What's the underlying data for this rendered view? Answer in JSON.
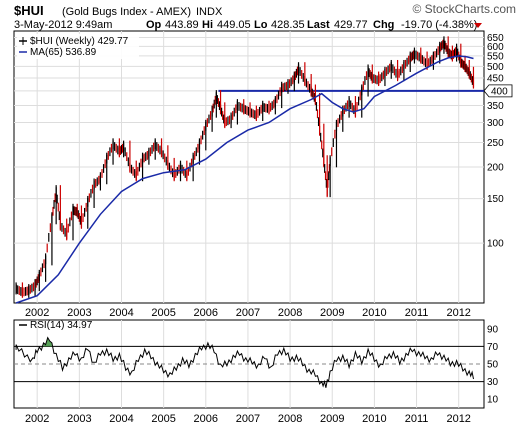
{
  "header": {
    "symbol": "$HUI",
    "name": "(Gold Bugs Index - AMEX)",
    "exchange": "INDX",
    "brand": "© StockCharts.com",
    "date": "3-May-2012 9:49am",
    "op_label": "Op",
    "op_value": "443.89",
    "hi_label": "Hi",
    "hi_value": "449.05",
    "lo_label": "Lo",
    "lo_value": "428.35",
    "last_label": "Last",
    "last_value": "429.77",
    "chg_label": "Chg",
    "chg_value": "-19.70 (-4.38%)",
    "colors": {
      "up": "#000000",
      "down": "#cc0000",
      "ma": "#1a2aa8",
      "hline": "#1a2aa8",
      "rsi_fill": "#2e8b2e"
    }
  },
  "chart_data": [
    {
      "type": "line",
      "legend": [
        {
          "label": "$HUI (Weekly) 429.77",
          "style": "price"
        },
        {
          "label": "MA(65) 536.89",
          "style": "ma"
        }
      ],
      "y_scale": "log",
      "ylim": [
        58,
        690
      ],
      "y_ticks": [
        650,
        600,
        550,
        500,
        450,
        400,
        350,
        300,
        250,
        200,
        150,
        100
      ],
      "x_ticks": [
        "2002",
        "2003",
        "2004",
        "2005",
        "2006",
        "2007",
        "2008",
        "2009",
        "2010",
        "2011",
        "2012"
      ],
      "x_range": [
        2001.45,
        2012.6
      ],
      "last_price_tag": "400",
      "horizontal_line": {
        "value": 400,
        "from": 2006.3,
        "to": 2012.6
      },
      "series": [
        {
          "name": "$HUI (Weekly)",
          "x": [
            2001.5,
            2001.65,
            2001.8,
            2001.95,
            2002.05,
            2002.2,
            2002.35,
            2002.45,
            2002.55,
            2002.7,
            2002.85,
            2002.95,
            2003.05,
            2003.2,
            2003.35,
            2003.5,
            2003.65,
            2003.8,
            2003.95,
            2004.05,
            2004.2,
            2004.35,
            2004.5,
            2004.65,
            2004.8,
            2004.95,
            2005.1,
            2005.25,
            2005.4,
            2005.55,
            2005.7,
            2005.85,
            2006.0,
            2006.15,
            2006.25,
            2006.35,
            2006.45,
            2006.6,
            2006.75,
            2006.9,
            2007.05,
            2007.2,
            2007.35,
            2007.5,
            2007.65,
            2007.8,
            2007.95,
            2008.1,
            2008.2,
            2008.35,
            2008.5,
            2008.6,
            2008.7,
            2008.8,
            2008.88,
            2008.95,
            2009.1,
            2009.25,
            2009.4,
            2009.55,
            2009.7,
            2009.85,
            2009.95,
            2010.1,
            2010.25,
            2010.4,
            2010.55,
            2010.7,
            2010.85,
            2010.95,
            2011.1,
            2011.25,
            2011.4,
            2011.55,
            2011.65,
            2011.75,
            2011.85,
            2011.95,
            2012.05,
            2012.15,
            2012.25,
            2012.35
          ],
          "values": [
            66,
            64,
            65,
            68,
            74,
            86,
            125,
            160,
            118,
            108,
            135,
            133,
            120,
            145,
            170,
            180,
            215,
            245,
            230,
            240,
            200,
            185,
            215,
            225,
            245,
            230,
            205,
            185,
            200,
            185,
            215,
            245,
            290,
            330,
            380,
            340,
            300,
            310,
            350,
            340,
            330,
            320,
            345,
            340,
            360,
            410,
            420,
            450,
            490,
            440,
            400,
            370,
            280,
            210,
            160,
            210,
            290,
            330,
            360,
            330,
            400,
            480,
            450,
            440,
            470,
            500,
            460,
            500,
            540,
            560,
            540,
            510,
            540,
            590,
            620,
            570,
            550,
            580,
            520,
            500,
            470,
            430
          ]
        },
        {
          "name": "MA(65)",
          "x": [
            2001.5,
            2002.0,
            2002.5,
            2003.0,
            2003.5,
            2004.0,
            2004.5,
            2005.0,
            2005.5,
            2006.0,
            2006.5,
            2007.0,
            2007.5,
            2008.0,
            2008.5,
            2008.75,
            2009.0,
            2009.25,
            2009.5,
            2009.75,
            2010.0,
            2010.5,
            2011.0,
            2011.5,
            2011.75,
            2012.0,
            2012.2,
            2012.35
          ],
          "values": [
            58,
            62,
            75,
            100,
            130,
            160,
            180,
            190,
            195,
            215,
            250,
            280,
            300,
            340,
            370,
            390,
            360,
            340,
            330,
            340,
            380,
            420,
            470,
            520,
            540,
            550,
            545,
            537
          ]
        }
      ]
    },
    {
      "type": "line",
      "legend": [
        {
          "label": "RSI(14) 34.97",
          "style": "rsi"
        }
      ],
      "ylim": [
        0,
        100
      ],
      "y_ticks": [
        90,
        70,
        50,
        30,
        10
      ],
      "reference_lines": [
        70,
        50,
        30
      ],
      "x_ticks": [
        "2002",
        "2003",
        "2004",
        "2005",
        "2006",
        "2007",
        "2008",
        "2009",
        "2010",
        "2011",
        "2012"
      ],
      "series": [
        {
          "name": "RSI(14)",
          "x": [
            2001.5,
            2001.7,
            2001.9,
            2002.0,
            2002.15,
            2002.3,
            2002.45,
            2002.6,
            2002.75,
            2002.9,
            2003.05,
            2003.2,
            2003.35,
            2003.5,
            2003.65,
            2003.8,
            2003.95,
            2004.1,
            2004.25,
            2004.4,
            2004.55,
            2004.7,
            2004.85,
            2005.0,
            2005.15,
            2005.3,
            2005.45,
            2005.6,
            2005.75,
            2005.9,
            2006.05,
            2006.2,
            2006.35,
            2006.5,
            2006.65,
            2006.8,
            2006.95,
            2007.1,
            2007.25,
            2007.4,
            2007.55,
            2007.7,
            2007.85,
            2008.0,
            2008.15,
            2008.3,
            2008.45,
            2008.6,
            2008.75,
            2008.85,
            2008.95,
            2009.1,
            2009.25,
            2009.4,
            2009.55,
            2009.7,
            2009.85,
            2010.0,
            2010.15,
            2010.3,
            2010.45,
            2010.6,
            2010.75,
            2010.9,
            2011.05,
            2011.2,
            2011.35,
            2011.5,
            2011.65,
            2011.8,
            2011.95,
            2012.1,
            2012.25,
            2012.35
          ],
          "values": [
            70,
            60,
            55,
            65,
            72,
            78,
            60,
            45,
            55,
            62,
            55,
            68,
            50,
            62,
            65,
            55,
            60,
            45,
            40,
            55,
            65,
            58,
            50,
            42,
            38,
            45,
            55,
            48,
            60,
            68,
            72,
            65,
            48,
            50,
            58,
            62,
            55,
            52,
            48,
            58,
            45,
            62,
            66,
            55,
            58,
            50,
            42,
            38,
            28,
            25,
            40,
            55,
            58,
            48,
            62,
            52,
            65,
            55,
            48,
            58,
            62,
            52,
            60,
            66,
            62,
            58,
            55,
            62,
            58,
            50,
            52,
            44,
            40,
            35
          ]
        }
      ]
    }
  ]
}
